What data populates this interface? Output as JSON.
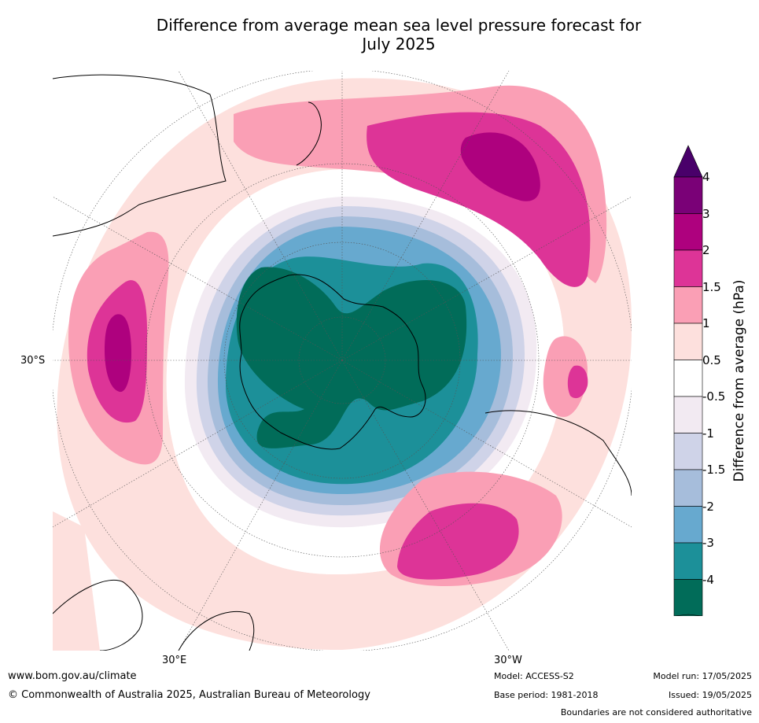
{
  "title_line1": "Difference from average mean sea level pressure forecast for",
  "title_line2": "July 2025",
  "lat_labels": {
    "left": "30°S",
    "bottom_left": "30°E",
    "bottom_right": "30°W"
  },
  "colorbar": {
    "title": "Difference from average (hPa)",
    "tick_labels": [
      "4",
      "3",
      "2",
      "1.5",
      "1",
      "0.5",
      "-0.5",
      "-1",
      "-1.5",
      "-2",
      "-3",
      "-4"
    ],
    "colors_top_to_bottom": [
      "#7a0177",
      "#ae017e",
      "#dd3497",
      "#fa9fb5",
      "#fde0dd",
      "#ffffff",
      "#f2eaf2",
      "#cfd3e8",
      "#a6bddb",
      "#67a9cf",
      "#1c9099",
      "#016c59"
    ],
    "over_color": "#49006a",
    "under_color": "#016c59"
  },
  "footer": {
    "website": "www.bom.gov.au/climate",
    "copyright": "© Commonwealth of Australia 2025, Australian Bureau of Meteorology",
    "model": "Model: ACCESS-S2",
    "base_period": "Base period: 1981-2018",
    "model_run": "Model run: 17/05/2025",
    "issued": "Issued: 19/05/2025",
    "disclaimer": "Boundaries are not considered authoritative"
  }
}
